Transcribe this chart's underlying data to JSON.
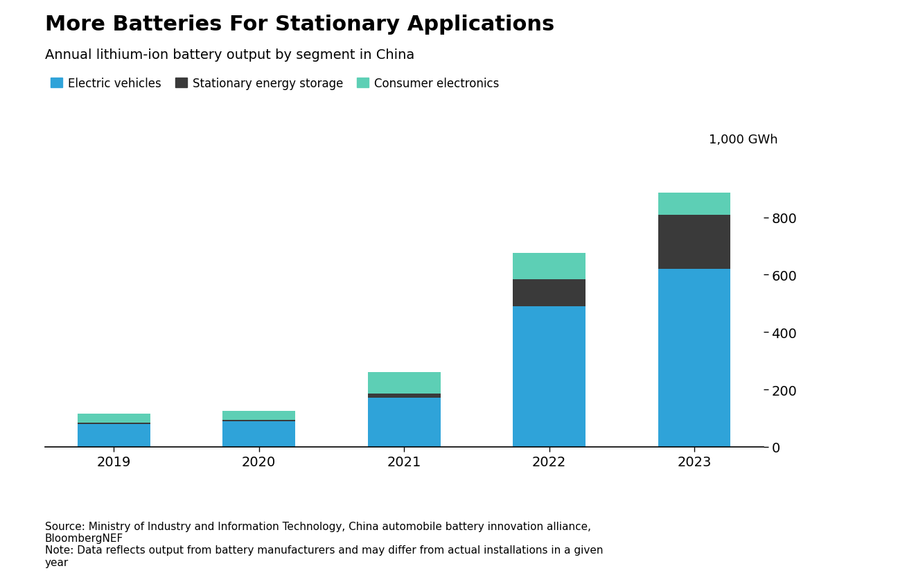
{
  "title": "More Batteries For Stationary Applications",
  "subtitle": "Annual lithium-ion battery output by segment in China",
  "years": [
    "2019",
    "2020",
    "2021",
    "2022",
    "2023"
  ],
  "ev": [
    80,
    90,
    170,
    490,
    620
  ],
  "stationary": [
    5,
    5,
    15,
    95,
    190
  ],
  "consumer": [
    30,
    30,
    75,
    90,
    75
  ],
  "ev_color": "#2fa3d9",
  "stationary_color": "#3a3a3a",
  "consumer_color": "#5dcfb5",
  "ylabel": "1,000 GWh",
  "yticks": [
    0,
    200,
    400,
    600,
    800
  ],
  "ylim": [
    0,
    1000
  ],
  "background_color": "#ffffff",
  "legend_labels": [
    "Electric vehicles",
    "Stationary energy storage",
    "Consumer electronics"
  ],
  "source_text": "Source: Ministry of Industry and Information Technology, China automobile battery innovation alliance,\nBloombergNEF\nNote: Data reflects output from battery manufacturers and may differ from actual installations in a given\nyear",
  "title_fontsize": 22,
  "subtitle_fontsize": 14,
  "legend_fontsize": 12,
  "tick_fontsize": 14,
  "ylabel_fontsize": 13,
  "source_fontsize": 11
}
